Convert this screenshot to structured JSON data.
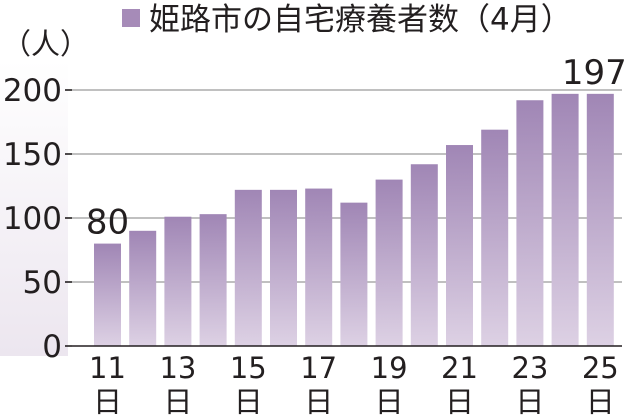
{
  "chart_data": {
    "type": "bar",
    "title": "姫路市の自宅療養者数（4月）",
    "legend": [
      {
        "name": "姫路市の自宅療養者数（4月）",
        "color": "#a68bb8"
      }
    ],
    "legend_placement": "top",
    "unit_label": "（人）",
    "categories": [
      "11",
      "12",
      "13",
      "14",
      "15",
      "16",
      "17",
      "18",
      "19",
      "20",
      "21",
      "22",
      "23",
      "24",
      "25"
    ],
    "x_tick_labels": [
      {
        "category": "11",
        "day": "11",
        "suffix": "日"
      },
      {
        "category": "13",
        "day": "13",
        "suffix": "日"
      },
      {
        "category": "15",
        "day": "15",
        "suffix": "日"
      },
      {
        "category": "17",
        "day": "17",
        "suffix": "日"
      },
      {
        "category": "19",
        "day": "19",
        "suffix": "日"
      },
      {
        "category": "21",
        "day": "21",
        "suffix": "日"
      },
      {
        "category": "23",
        "day": "23",
        "suffix": "日"
      },
      {
        "category": "25",
        "day": "25",
        "suffix": "日"
      }
    ],
    "values": [
      80,
      90,
      101,
      103,
      122,
      122,
      123,
      112,
      130,
      142,
      157,
      169,
      192,
      197,
      197
    ],
    "data_labels": [
      {
        "category": "11",
        "text": "80"
      },
      {
        "category": "25",
        "text": "197"
      }
    ],
    "y_ticks": [
      "0",
      "50",
      "100",
      "150",
      "200"
    ],
    "ylim": [
      0,
      200
    ],
    "grid": true,
    "colors": {
      "bar_top": "#a086b5",
      "bar_bottom": "#ddd1e4",
      "legend_swatch": "#a68bb8",
      "axis_band": "#ece6ef"
    }
  }
}
